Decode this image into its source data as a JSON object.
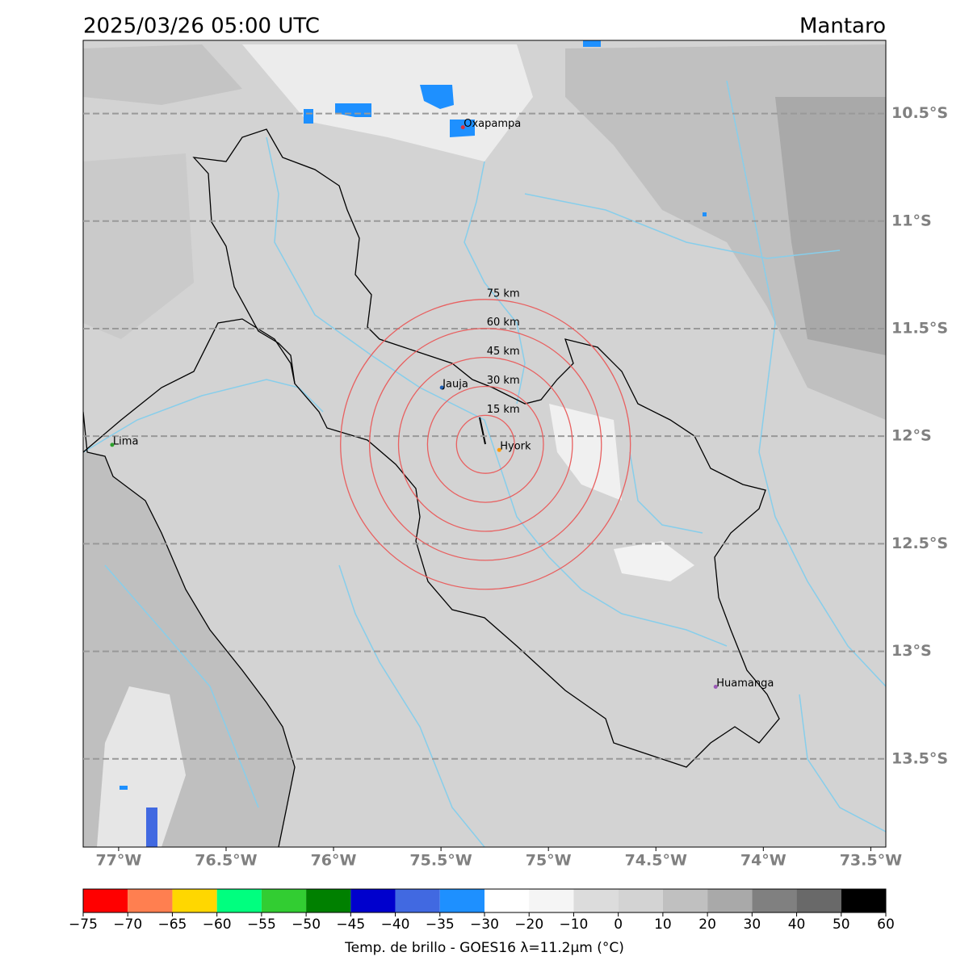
{
  "title": "2025/03/26 05:00 UTC",
  "region": "Mantaro",
  "map": {
    "xlim": [
      -77.165,
      -73.43
    ],
    "ylim": [
      -10.16,
      -13.91
    ],
    "xticks": [
      {
        "value": -77,
        "label": "77°W"
      },
      {
        "value": -76.5,
        "label": "76.5°W"
      },
      {
        "value": -76,
        "label": "76°W"
      },
      {
        "value": -75.5,
        "label": "75.5°W"
      },
      {
        "value": -75,
        "label": "75°W"
      },
      {
        "value": -74.5,
        "label": "74.5°W"
      },
      {
        "value": -74,
        "label": "74°W"
      },
      {
        "value": -73.5,
        "label": "73.5°W"
      }
    ],
    "yticks": [
      {
        "value": -10.5,
        "label": "10.5°S"
      },
      {
        "value": -11,
        "label": "11°S"
      },
      {
        "value": -11.5,
        "label": "11.5°S"
      },
      {
        "value": -12,
        "label": "12°S"
      },
      {
        "value": -12.5,
        "label": "12.5°S"
      },
      {
        "value": -13,
        "label": "13°S"
      },
      {
        "value": -13.5,
        "label": "13.5°S"
      }
    ],
    "grid": true,
    "cities": [
      {
        "name": "Oxapampa",
        "lon": -75.398,
        "lat": -10.564,
        "color": "#e0303a"
      },
      {
        "name": "Jauja",
        "lon": -75.496,
        "lat": -11.774,
        "color": "#1f5fb4"
      },
      {
        "name": "Hyork",
        "lon": -75.229,
        "lat": -12.064,
        "color": "#ff9900"
      },
      {
        "name": "Lima",
        "lon": -77.03,
        "lat": -12.04,
        "color": "#2ca02c"
      },
      {
        "name": "Huamanga",
        "lon": -74.222,
        "lat": -13.165,
        "color": "#9b59b6"
      }
    ],
    "rings": {
      "center": {
        "lon": -75.293,
        "lat": -12.038
      },
      "color": "#e86060",
      "values": [
        15,
        30,
        45,
        60,
        75
      ],
      "value_labels": [
        "15 km",
        "30 km",
        "45 km",
        "60 km",
        "75 km"
      ]
    }
  },
  "colorbar": {
    "label": "Temp. de brillo - GOES16 λ=11.2μm (°C)",
    "bounds": [
      {
        "value": -75,
        "label": "−75"
      },
      {
        "value": -70,
        "label": "−70"
      },
      {
        "value": -65,
        "label": "−65"
      },
      {
        "value": -60,
        "label": "−60"
      },
      {
        "value": -55,
        "label": "−55"
      },
      {
        "value": -50,
        "label": "−50"
      },
      {
        "value": -45,
        "label": "−45"
      },
      {
        "value": -40,
        "label": "−40"
      },
      {
        "value": -35,
        "label": "−35"
      },
      {
        "value": -30,
        "label": "−30"
      },
      {
        "value": -20,
        "label": "−20"
      },
      {
        "value": -10,
        "label": "−10"
      },
      0,
      10,
      20,
      30,
      40,
      50,
      60
    ],
    "colors": [
      "#ff0000",
      "#ff7f50",
      "#ffd700",
      "#00ff7f",
      "#32cd32",
      "#008000",
      "#0000cd",
      "#4169e1",
      "#1e90ff",
      "#ffffff",
      "#f5f5f5",
      "#dcdcdc",
      "#d3d3d3",
      "#c0c0c0",
      "#a9a9a9",
      "#808080",
      "#696969",
      "#000000"
    ]
  }
}
